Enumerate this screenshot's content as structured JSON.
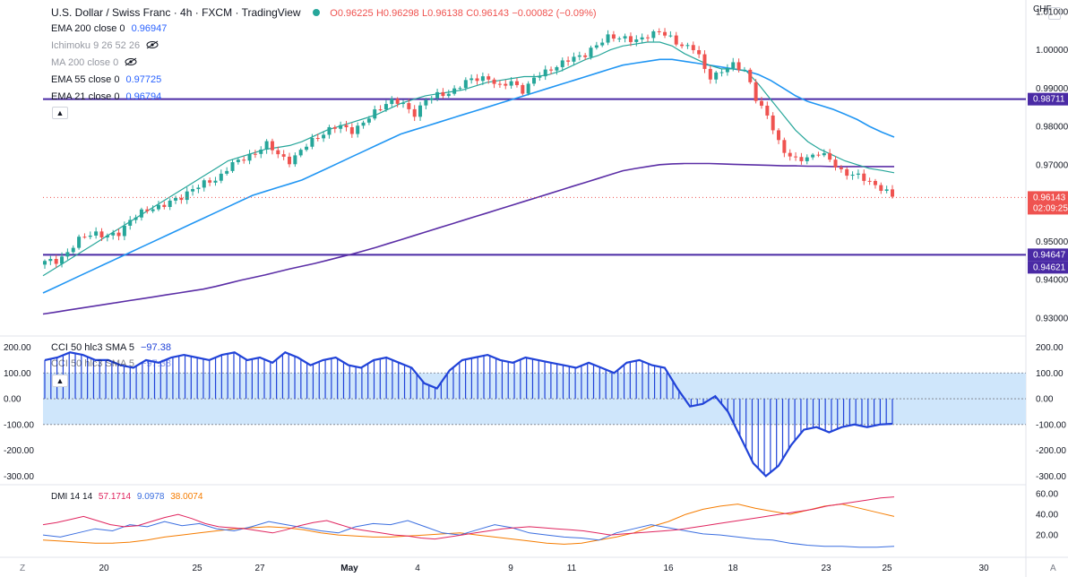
{
  "header": {
    "symbol": "U.S. Dollar / Swiss Franc",
    "interval": "4h",
    "exchange": "FXCM",
    "source": "TradingView",
    "status_color": "#26a69a",
    "o": "O0.96225",
    "h": "H0.96298",
    "l": "L0.96138",
    "c": "C0.96143",
    "change": "−0.00082 (−0.09%)"
  },
  "indicators": [
    {
      "label": "EMA 200 close 0",
      "value": "0.96947",
      "color": "#2962ff"
    },
    {
      "label": "Ichimoku 9 26 52 26",
      "value": "",
      "muted": true,
      "icon": "eye-off-icon"
    },
    {
      "label": "MA 200 close 0",
      "value": "",
      "muted": true,
      "icon": "eye-off-icon"
    },
    {
      "label": "EMA 55 close 0",
      "value": "0.97725",
      "color": "#2962ff"
    },
    {
      "label": "EMA 21 close 0",
      "value": "0.96794",
      "color": "#2962ff"
    }
  ],
  "currency_label": "CHF",
  "price_axis": [
    "1.01000",
    "1.00000",
    "0.99000",
    "0.98000",
    "0.97000",
    "0.96000",
    "0.95000",
    "0.94000",
    "0.93000"
  ],
  "price_tags": {
    "upper_line": "0.98711",
    "current": "0.96143",
    "countdown": "02:09:25",
    "lower_line_a": "0.94647",
    "lower_line_b": "0.94621"
  },
  "cci": {
    "legend": "CCI 50 hlc3 SMA 5",
    "value": "−97.38",
    "legend_ghost": "CCI 50 hlc3 SMA 5",
    "value_ghost": "−97.38",
    "axis": [
      "200.00",
      "100.00",
      "0.00",
      "-100.00",
      "-200.00",
      "-300.00"
    ]
  },
  "dmi": {
    "legend": "DMI 14 14",
    "plus": "57.1714",
    "minus": "9.0978",
    "adx": "38.0074",
    "axis": [
      "60.00",
      "40.00",
      "20.00"
    ]
  },
  "time_axis": [
    "20",
    "25",
    "27",
    "May",
    "4",
    "9",
    "11",
    "16",
    "18",
    "23",
    "25",
    "30"
  ],
  "corner_left": "Z",
  "corner_right": "A",
  "colors": {
    "up": "#26a69a",
    "down": "#ef5350",
    "ema21": "#26a69a",
    "ema55": "#2196f3",
    "ema200": "#5b2ea6",
    "hline": "#4a2aa5",
    "cci_line": "#2143d8",
    "cci_band": "#cfe6fb",
    "dmi_plus": "#e0245e",
    "dmi_minus": "#3a6ee0",
    "adx": "#f57c00"
  },
  "chart_data": {
    "type": "candlestick",
    "price_ylim": [
      0.9255,
      1.013
    ],
    "horizontal_levels": [
      0.98711,
      0.94647,
      0.94621
    ],
    "current_price": 0.96143,
    "close_path": [
      0.9445,
      0.945,
      0.9475,
      0.951,
      0.9525,
      0.951,
      0.952,
      0.956,
      0.9575,
      0.959,
      0.96,
      0.961,
      0.964,
      0.965,
      0.966,
      0.97,
      0.971,
      0.973,
      0.9755,
      0.9725,
      0.971,
      0.974,
      0.977,
      0.979,
      0.98,
      0.979,
      0.981,
      0.984,
      0.987,
      0.986,
      0.983,
      0.987,
      0.988,
      0.989,
      0.991,
      0.9925,
      0.993,
      0.99,
      0.992,
      0.989,
      0.993,
      0.995,
      0.996,
      0.998,
      0.999,
      1.001,
      1.004,
      1.003,
      1.002,
      1.004,
      1.0045,
      1.003,
      1.001,
      1.0,
      0.993,
      0.994,
      0.996,
      0.995,
      0.986,
      0.982,
      0.974,
      0.971,
      0.972,
      0.973,
      0.971,
      0.968,
      0.967,
      0.966,
      0.964,
      0.9615
    ],
    "ema21_path": [
      0.941,
      0.943,
      0.945,
      0.947,
      0.949,
      0.951,
      0.953,
      0.955,
      0.957,
      0.959,
      0.961,
      0.963,
      0.965,
      0.967,
      0.969,
      0.971,
      0.972,
      0.973,
      0.974,
      0.9745,
      0.975,
      0.976,
      0.9775,
      0.979,
      0.98,
      0.981,
      0.982,
      0.983,
      0.9845,
      0.986,
      0.987,
      0.988,
      0.9885,
      0.989,
      0.9895,
      0.9905,
      0.9915,
      0.992,
      0.9925,
      0.993,
      0.993,
      0.9935,
      0.9945,
      0.996,
      0.9975,
      0.9985,
      1.0,
      1.001,
      1.0015,
      1.002,
      1.002,
      1.001,
      0.999,
      0.9975,
      0.996,
      0.995,
      0.995,
      0.9945,
      0.991,
      0.987,
      0.983,
      0.979,
      0.976,
      0.974,
      0.9725,
      0.971,
      0.97,
      0.969,
      0.9685,
      0.9679
    ],
    "ema55_path": [
      0.9365,
      0.938,
      0.9395,
      0.941,
      0.9425,
      0.944,
      0.9455,
      0.947,
      0.9485,
      0.95,
      0.9515,
      0.953,
      0.9545,
      0.956,
      0.9575,
      0.959,
      0.9605,
      0.962,
      0.963,
      0.964,
      0.965,
      0.966,
      0.9675,
      0.969,
      0.9705,
      0.972,
      0.9735,
      0.975,
      0.9765,
      0.978,
      0.979,
      0.98,
      0.981,
      0.982,
      0.983,
      0.984,
      0.985,
      0.986,
      0.987,
      0.988,
      0.989,
      0.99,
      0.991,
      0.992,
      0.993,
      0.994,
      0.995,
      0.996,
      0.9965,
      0.997,
      0.9975,
      0.9975,
      0.997,
      0.9965,
      0.996,
      0.9955,
      0.995,
      0.9945,
      0.9935,
      0.992,
      0.99,
      0.988,
      0.9865,
      0.9855,
      0.9845,
      0.9832,
      0.9818,
      0.98,
      0.9785,
      0.9772
    ],
    "ema200_path": [
      0.931,
      0.9315,
      0.932,
      0.9325,
      0.933,
      0.9335,
      0.934,
      0.9345,
      0.935,
      0.9355,
      0.936,
      0.9365,
      0.937,
      0.9375,
      0.9382,
      0.939,
      0.9398,
      0.9405,
      0.9412,
      0.942,
      0.9428,
      0.9435,
      0.9442,
      0.945,
      0.9458,
      0.9466,
      0.9475,
      0.9484,
      0.9494,
      0.9504,
      0.9514,
      0.9524,
      0.9534,
      0.9544,
      0.9554,
      0.9564,
      0.9574,
      0.9584,
      0.9594,
      0.9604,
      0.9614,
      0.9624,
      0.9634,
      0.9644,
      0.9654,
      0.9664,
      0.9674,
      0.9684,
      0.969,
      0.9695,
      0.97,
      0.9702,
      0.9703,
      0.9703,
      0.9703,
      0.9702,
      0.9701,
      0.97,
      0.9699,
      0.9698,
      0.9697,
      0.9697,
      0.9696,
      0.9696,
      0.9695,
      0.9695,
      0.9695,
      0.9695,
      0.9695,
      0.9695
    ],
    "cci_ylim": [
      -330,
      240
    ],
    "cci_path": [
      150,
      160,
      180,
      170,
      150,
      150,
      130,
      120,
      150,
      140,
      160,
      170,
      160,
      150,
      170,
      180,
      150,
      160,
      140,
      180,
      160,
      130,
      150,
      160,
      130,
      120,
      150,
      160,
      140,
      120,
      60,
      40,
      110,
      150,
      160,
      170,
      150,
      140,
      160,
      150,
      140,
      130,
      120,
      140,
      120,
      100,
      140,
      150,
      130,
      120,
      40,
      -30,
      -20,
      10,
      -50,
      -150,
      -250,
      -300,
      -260,
      -180,
      -120,
      -110,
      -130,
      -110,
      -100,
      -110,
      -100,
      -97
    ],
    "cci_band": [
      -100,
      100
    ],
    "dmi_ylim": [
      0,
      68
    ],
    "dmi_plus_path": [
      30,
      32,
      35,
      38,
      34,
      30,
      28,
      29,
      33,
      37,
      40,
      36,
      31,
      28,
      27,
      26,
      24,
      22,
      25,
      29,
      32,
      34,
      30,
      26,
      24,
      22,
      20,
      19,
      17,
      16,
      18,
      20,
      22,
      24,
      26,
      27,
      28,
      27,
      26,
      25,
      24,
      22,
      20,
      21,
      22,
      23,
      24,
      25,
      27,
      29,
      31,
      33,
      35,
      37,
      39,
      41,
      43,
      45,
      48,
      50,
      52,
      54,
      56,
      57
    ],
    "dmi_minus_path": [
      20,
      18,
      22,
      26,
      24,
      30,
      28,
      33,
      29,
      31,
      26,
      24,
      28,
      33,
      30,
      27,
      24,
      22,
      28,
      31,
      30,
      34,
      28,
      22,
      20,
      25,
      30,
      27,
      22,
      20,
      18,
      17,
      15,
      22,
      26,
      30,
      27,
      24,
      21,
      20,
      18,
      16,
      15,
      12,
      10,
      9,
      9,
      8,
      8,
      9
    ],
    "adx_path": [
      15,
      14,
      13,
      12,
      12,
      13,
      15,
      18,
      20,
      22,
      24,
      26,
      27,
      28,
      27,
      25,
      22,
      20,
      19,
      18,
      18,
      19,
      20,
      21,
      22,
      20,
      18,
      16,
      14,
      12,
      11,
      12,
      15,
      18,
      22,
      28,
      33,
      40,
      45,
      48,
      50,
      46,
      43,
      40,
      44,
      48,
      50,
      46,
      42,
      38
    ]
  }
}
